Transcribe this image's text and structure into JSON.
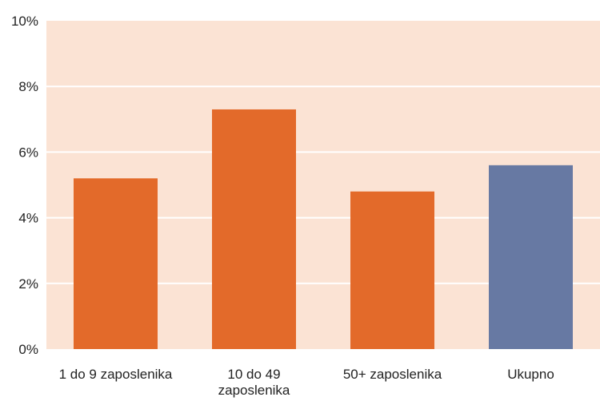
{
  "chart_data": {
    "type": "bar",
    "categories": [
      [
        "1 do 9 zaposlenika"
      ],
      [
        "10 do 49",
        "zaposlenika"
      ],
      [
        "50+ zaposlenika"
      ],
      [
        "Ukupno"
      ]
    ],
    "values": [
      5.2,
      7.3,
      4.8,
      5.6
    ],
    "bar_colors": [
      "#e36a2a",
      "#e36a2a",
      "#e36a2a",
      "#6779a3"
    ],
    "plot_background": "#fbe3d4",
    "gridline_color": "#ffffff",
    "ylim": [
      0,
      10
    ],
    "yticks": [
      "0%",
      "2%",
      "4%",
      "6%",
      "8%",
      "10%"
    ],
    "ytick_values": [
      0,
      2,
      4,
      6,
      8,
      10
    ],
    "grid": true,
    "title": "",
    "xlabel": "",
    "ylabel": ""
  }
}
